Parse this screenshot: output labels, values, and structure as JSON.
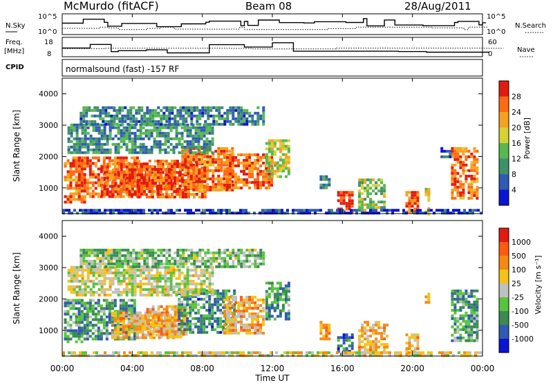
{
  "header": {
    "station": "McMurdo (fitACF)",
    "beam": "Beam 08",
    "date": "28/Aug/2011",
    "program": "normalsound (fast) -157 RF"
  },
  "panels": {
    "nsky": {
      "label": "N.Sky",
      "ticks": [
        "10^5",
        "10^0"
      ]
    },
    "nsearch": {
      "label": "N.Search",
      "ticks": [
        "10^5",
        "10^0"
      ]
    },
    "freq": {
      "label": "Freq.",
      "unit": "[MHz]",
      "ticks": [
        "18",
        "8"
      ]
    },
    "nave": {
      "label": "Nave",
      "ticks": [
        "60",
        "0"
      ]
    },
    "cpid": {
      "label": "CPID"
    }
  },
  "axes": {
    "ylabel": "Slant Range [km]",
    "xlabel": "Time UT",
    "xticks": [
      "00:00",
      "04:00",
      "08:00",
      "12:00",
      "16:00",
      "20:00",
      "00:00"
    ],
    "yticks": [
      "1000",
      "2000",
      "3000",
      "4000"
    ]
  },
  "chart_data": [
    {
      "type": "heatmap",
      "title": "Power",
      "x_range_hours": [
        0,
        24
      ],
      "y_range_km": [
        180,
        4500
      ],
      "colorbar": {
        "label": "Power [dB]",
        "ticks": [
          "4",
          "8",
          "12",
          "16",
          "20",
          "24",
          "28"
        ],
        "colors": [
          "#0a14d2",
          "#2f5bb4",
          "#3f8f6a",
          "#56b84f",
          "#d4d235",
          "#f6a21e",
          "#ff6a12",
          "#e21b11"
        ]
      },
      "regions": [
        {
          "t0": 0.1,
          "t1": 1.3,
          "r0": 550,
          "r1": 2000,
          "level": 0.78
        },
        {
          "t0": 0.9,
          "t1": 4.4,
          "r0": 700,
          "r1": 2000,
          "level": 0.82
        },
        {
          "t0": 2.2,
          "t1": 6.9,
          "r0": 800,
          "r1": 1800,
          "level": 0.86
        },
        {
          "t0": 4.3,
          "t1": 8.2,
          "r0": 700,
          "r1": 1900,
          "level": 0.84
        },
        {
          "t0": 6.8,
          "t1": 9.7,
          "r0": 900,
          "r1": 2300,
          "level": 0.78
        },
        {
          "t0": 9.2,
          "t1": 12.0,
          "r0": 1000,
          "r1": 2100,
          "level": 0.82
        },
        {
          "t0": 11.6,
          "t1": 12.9,
          "r0": 1400,
          "r1": 2550,
          "level": 0.55
        },
        {
          "t0": 0.3,
          "t1": 8.6,
          "r0": 2100,
          "r1": 3050,
          "level": 0.32
        },
        {
          "t0": 1.0,
          "t1": 11.5,
          "r0": 3000,
          "r1": 3600,
          "level": 0.28
        },
        {
          "t0": 14.7,
          "t1": 15.2,
          "r0": 1000,
          "r1": 1400,
          "level": 0.3
        },
        {
          "t0": 16.9,
          "t1": 18.4,
          "r0": 300,
          "r1": 1300,
          "level": 0.48
        },
        {
          "t0": 15.7,
          "t1": 16.5,
          "r0": 200,
          "r1": 900,
          "level": 0.92
        },
        {
          "t0": 19.6,
          "t1": 20.3,
          "r0": 200,
          "r1": 900,
          "level": 0.8
        },
        {
          "t0": 20.7,
          "t1": 21.0,
          "r0": 200,
          "r1": 1000,
          "level": 0.6
        },
        {
          "t0": 22.2,
          "t1": 23.7,
          "r0": 700,
          "r1": 2300,
          "level": 0.78
        },
        {
          "t0": 21.6,
          "t1": 22.1,
          "r0": 2000,
          "r1": 2300,
          "level": 0.2
        },
        {
          "t0": 0.0,
          "t1": 24.0,
          "r0": 180,
          "r1": 330,
          "level": 0.12
        }
      ]
    },
    {
      "type": "heatmap",
      "title": "Velocity",
      "x_range_hours": [
        0,
        24
      ],
      "y_range_km": [
        180,
        4500
      ],
      "colorbar": {
        "label": "Velocity [m s⁻¹]",
        "ticks": [
          "1000",
          "500",
          "100",
          "25",
          "-25",
          "-100",
          "-500",
          "-1000"
        ],
        "colors": [
          "#0a14d2",
          "#2f5bb4",
          "#3a8a52",
          "#56c43c",
          "#c0c0c0",
          "#f5c218",
          "#f58a10",
          "#ff5b10",
          "#e21b11"
        ]
      },
      "regions": [
        {
          "t0": 0.1,
          "t1": 1.2,
          "r0": 600,
          "r1": 2000,
          "level": 0.34
        },
        {
          "t0": 0.9,
          "t1": 4.2,
          "r0": 700,
          "r1": 2000,
          "level": 0.3
        },
        {
          "t0": 2.8,
          "t1": 6.3,
          "r0": 800,
          "r1": 1600,
          "level": 0.62
        },
        {
          "t0": 4.8,
          "t1": 7.1,
          "r0": 800,
          "r1": 1800,
          "level": 0.66
        },
        {
          "t0": 6.6,
          "t1": 9.8,
          "r0": 900,
          "r1": 2300,
          "level": 0.28
        },
        {
          "t0": 9.2,
          "t1": 11.5,
          "r0": 900,
          "r1": 2100,
          "level": 0.64
        },
        {
          "t0": 11.6,
          "t1": 12.9,
          "r0": 1400,
          "r1": 2550,
          "level": 0.3
        },
        {
          "t0": 0.3,
          "t1": 8.6,
          "r0": 2100,
          "r1": 3050,
          "level": 0.52
        },
        {
          "t0": 1.0,
          "t1": 11.5,
          "r0": 3000,
          "r1": 3600,
          "level": 0.4
        },
        {
          "t0": 14.7,
          "t1": 15.2,
          "r0": 700,
          "r1": 1300,
          "level": 0.7
        },
        {
          "t0": 16.9,
          "t1": 18.5,
          "r0": 300,
          "r1": 1300,
          "level": 0.64
        },
        {
          "t0": 15.7,
          "t1": 16.5,
          "r0": 200,
          "r1": 900,
          "level": 0.2
        },
        {
          "t0": 19.6,
          "t1": 20.3,
          "r0": 200,
          "r1": 900,
          "level": 0.62
        },
        {
          "t0": 20.7,
          "t1": 21.0,
          "r0": 1800,
          "r1": 2200,
          "level": 0.7
        },
        {
          "t0": 22.2,
          "t1": 23.7,
          "r0": 700,
          "r1": 2300,
          "level": 0.32
        },
        {
          "t0": 0.0,
          "t1": 24.0,
          "r0": 180,
          "r1": 330,
          "level": 0.55
        }
      ]
    }
  ]
}
